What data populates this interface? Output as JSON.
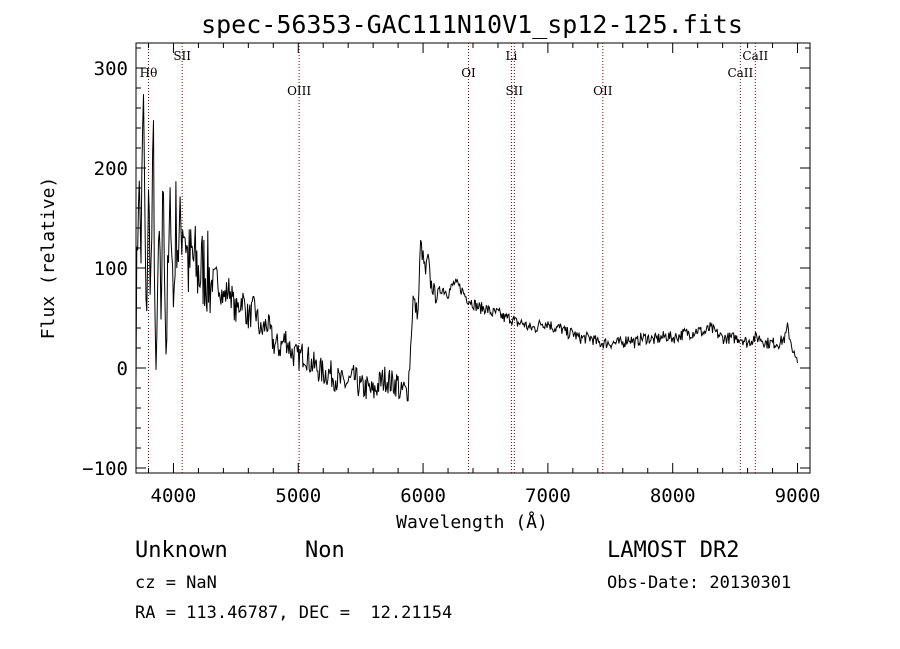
{
  "chart_data": {
    "type": "line",
    "title": "spec-56353-GAC111N10V1_sp12-125.fits",
    "xlabel": "Wavelength (Å)",
    "ylabel": "Flux (relative)",
    "xlim": [
      3700,
      9100
    ],
    "ylim": [
      -105,
      325
    ],
    "x_ticks": [
      4000,
      5000,
      6000,
      7000,
      8000,
      9000
    ],
    "x_tick_labels": [
      "4000",
      "5000",
      "6000",
      "7000",
      "8000",
      "9000"
    ],
    "y_ticks": [
      -100,
      0,
      100,
      200,
      300
    ],
    "y_tick_labels": [
      "−100",
      "0",
      "100",
      "200",
      "300"
    ],
    "grid": false,
    "series": [
      {
        "color": "#000000",
        "x": [
          3700,
          3720,
          3740,
          3760,
          3780,
          3800,
          3820,
          3840,
          3860,
          3880,
          3900,
          3920,
          3940,
          3960,
          3980,
          4000,
          4020,
          4040,
          4060,
          4080,
          4100,
          4120,
          4150,
          4200,
          4250,
          4300,
          4350,
          4400,
          4450,
          4500,
          4550,
          4600,
          4650,
          4700,
          4750,
          4800,
          4850,
          4900,
          4950,
          5000,
          5050,
          5100,
          5150,
          5200,
          5250,
          5300,
          5350,
          5400,
          5450,
          5500,
          5550,
          5600,
          5650,
          5700,
          5750,
          5800,
          5820,
          5840,
          5860,
          5880,
          5900,
          5920,
          5940,
          5960,
          5980,
          6000,
          6020,
          6040,
          6060,
          6080,
          6100,
          6150,
          6200,
          6250,
          6300,
          6350,
          6400,
          6450,
          6500,
          6550,
          6600,
          6650,
          6700,
          6750,
          6800,
          6850,
          6900,
          6950,
          7000,
          7050,
          7100,
          7150,
          7200,
          7250,
          7300,
          7350,
          7400,
          7450,
          7500,
          7550,
          7600,
          7650,
          7700,
          7750,
          7800,
          7850,
          7900,
          7950,
          8000,
          8050,
          8100,
          8150,
          8200,
          8250,
          8300,
          8350,
          8400,
          8450,
          8500,
          8550,
          8600,
          8650,
          8700,
          8750,
          8800,
          8850,
          8900,
          8920,
          8940,
          8960,
          8980,
          9000
        ],
        "y": [
          30,
          190,
          120,
          270,
          40,
          160,
          90,
          220,
          -40,
          120,
          60,
          190,
          20,
          100,
          170,
          60,
          150,
          120,
          140,
          150,
          130,
          100,
          110,
          95,
          100,
          85,
          90,
          70,
          80,
          55,
          70,
          50,
          60,
          35,
          45,
          25,
          20,
          30,
          15,
          10,
          15,
          5,
          0,
          -5,
          -5,
          -10,
          -15,
          -15,
          -10,
          -20,
          -20,
          -25,
          -15,
          -10,
          -15,
          -15,
          -30,
          -20,
          -25,
          -20,
          20,
          70,
          60,
          55,
          125,
          110,
          95,
          110,
          85,
          80,
          70,
          80,
          75,
          85,
          80,
          70,
          65,
          60,
          60,
          55,
          55,
          50,
          50,
          45,
          45,
          40,
          40,
          45,
          45,
          40,
          40,
          35,
          35,
          30,
          30,
          30,
          25,
          25,
          25,
          25,
          25,
          30,
          25,
          30,
          30,
          28,
          30,
          32,
          30,
          32,
          35,
          35,
          38,
          35,
          40,
          35,
          30,
          30,
          30,
          30,
          25,
          30,
          30,
          25,
          25,
          25,
          30,
          40,
          30,
          20,
          10,
          5
        ]
      }
    ],
    "annotations": [
      {
        "label": "Hθ",
        "x": 3800,
        "row": 1
      },
      {
        "label": "SII",
        "x": 4070,
        "row": 0
      },
      {
        "label": "OIII",
        "x": 5007,
        "row": 2
      },
      {
        "label": "OI",
        "x": 6364,
        "row": 1
      },
      {
        "label": "Li",
        "x": 6708,
        "row": 0
      },
      {
        "label": "SII",
        "x": 6731,
        "row": 2
      },
      {
        "label": "OII",
        "x": 7440,
        "row": 2
      },
      {
        "label": "CaII",
        "x": 8542,
        "row": 1
      },
      {
        "label": "CaII",
        "x": 8662,
        "row": 0
      }
    ]
  },
  "info": {
    "object_class": "Unknown",
    "object_subclass": "Non",
    "redshift": "cz = NaN",
    "coordinates": "RA = 113.46787, DEC =  12.21154",
    "survey": "LAMOST DR2",
    "obs_date": "Obs-Date: 20130301"
  }
}
